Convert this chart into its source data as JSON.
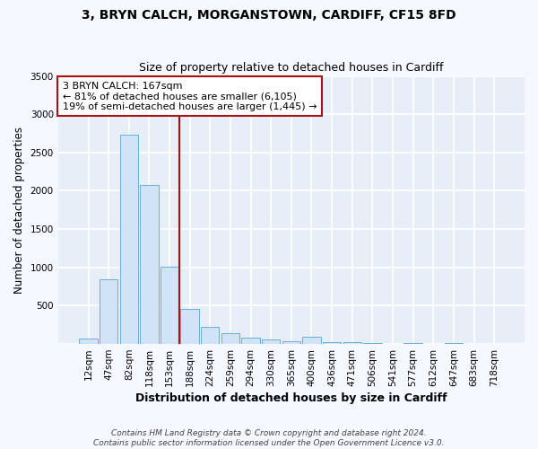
{
  "title1": "3, BRYN CALCH, MORGANSTOWN, CARDIFF, CF15 8FD",
  "title2": "Size of property relative to detached houses in Cardiff",
  "xlabel": "Distribution of detached houses by size in Cardiff",
  "ylabel": "Number of detached properties",
  "bar_labels": [
    "12sqm",
    "47sqm",
    "82sqm",
    "118sqm",
    "153sqm",
    "188sqm",
    "224sqm",
    "259sqm",
    "294sqm",
    "330sqm",
    "365sqm",
    "400sqm",
    "436sqm",
    "471sqm",
    "506sqm",
    "541sqm",
    "577sqm",
    "612sqm",
    "647sqm",
    "683sqm",
    "718sqm"
  ],
  "bar_values": [
    70,
    850,
    2730,
    2080,
    1010,
    460,
    220,
    145,
    80,
    60,
    35,
    90,
    30,
    20,
    15,
    5,
    12,
    3,
    8,
    2,
    4
  ],
  "bar_color": "#d0e3f7",
  "bar_edge_color": "#6aaed6",
  "fig_background": "#f5f8ff",
  "plot_background": "#e8eef8",
  "grid_color": "#ffffff",
  "vline_x": 4.5,
  "vline_color": "#aa1111",
  "annotation_line1": "3 BRYN CALCH: 167sqm",
  "annotation_line2": "← 81% of detached houses are smaller (6,105)",
  "annotation_line3": "19% of semi-detached houses are larger (1,445) →",
  "annotation_box_color": "#ffffff",
  "annotation_box_edge": "#aa1111",
  "footnote": "Contains HM Land Registry data © Crown copyright and database right 2024.\nContains public sector information licensed under the Open Government Licence v3.0.",
  "ylim": [
    0,
    3500
  ],
  "yticks": [
    0,
    500,
    1000,
    1500,
    2000,
    2500,
    3000,
    3500
  ],
  "title1_fontsize": 10,
  "title2_fontsize": 9,
  "xlabel_fontsize": 9,
  "ylabel_fontsize": 8.5,
  "tick_fontsize": 7.5,
  "annotation_fontsize": 8,
  "footnote_fontsize": 6.5
}
